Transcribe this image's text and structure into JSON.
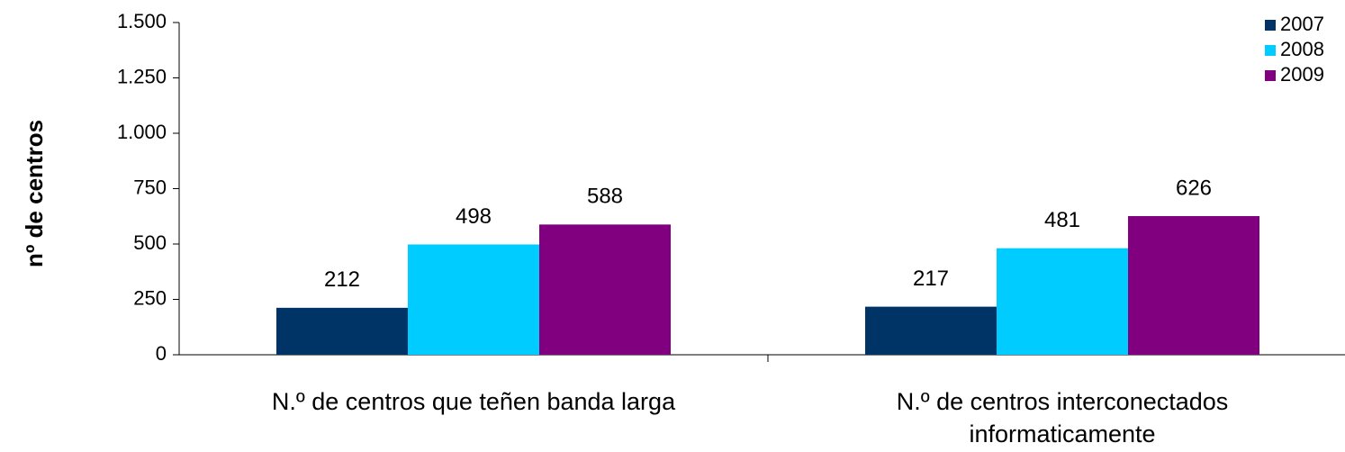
{
  "chart_data": {
    "type": "bar",
    "y_label": "nº de centros",
    "categories": [
      "N.º de centros que teñen banda larga",
      "N.º de centros interconectados informaticamente"
    ],
    "series": [
      {
        "name": "2007",
        "color": "#003366",
        "values": [
          212,
          217
        ]
      },
      {
        "name": "2008",
        "color": "#00ccff",
        "values": [
          498,
          481
        ]
      },
      {
        "name": "2009",
        "color": "#800080",
        "values": [
          588,
          626
        ]
      }
    ],
    "ylim": [
      0,
      1500
    ],
    "yticks": [
      0,
      250,
      500,
      750,
      {
        "value": 1000,
        "label": "1.000"
      },
      {
        "value": 1250,
        "label": "1.250"
      },
      {
        "value": 1500,
        "label": "1.500"
      }
    ],
    "legend": "top-right"
  }
}
